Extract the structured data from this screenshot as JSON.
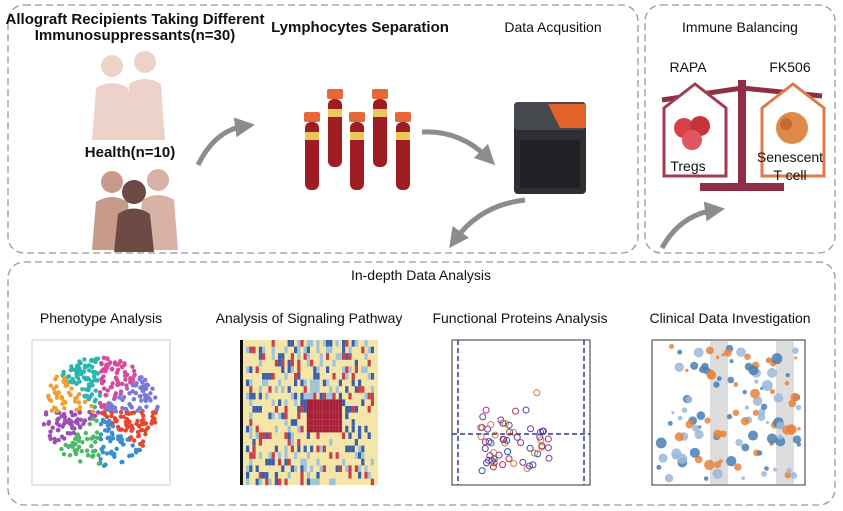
{
  "top_left": {
    "recipients_label": [
      "Allograft Recipients Taking Different",
      "Immunosuppressants(n=30)"
    ],
    "health_label": "Health(n=10)",
    "separation_label": "Lymphocytes Separation",
    "acquisition_label": "Data Acqusition"
  },
  "immune_balancing": {
    "title": "Immune Balancing",
    "left_drug": "RAPA",
    "right_drug": "FK506",
    "left_cell": "Tregs",
    "right_cell": [
      "Senescent",
      "T cell"
    ]
  },
  "analysis": {
    "title": "In-depth Data Analysis",
    "panels": [
      "Phenotype Analysis",
      "Analysis of Signaling Pathway",
      "Functional Proteins Analysis",
      "Clinical Data Investigation"
    ]
  }
}
